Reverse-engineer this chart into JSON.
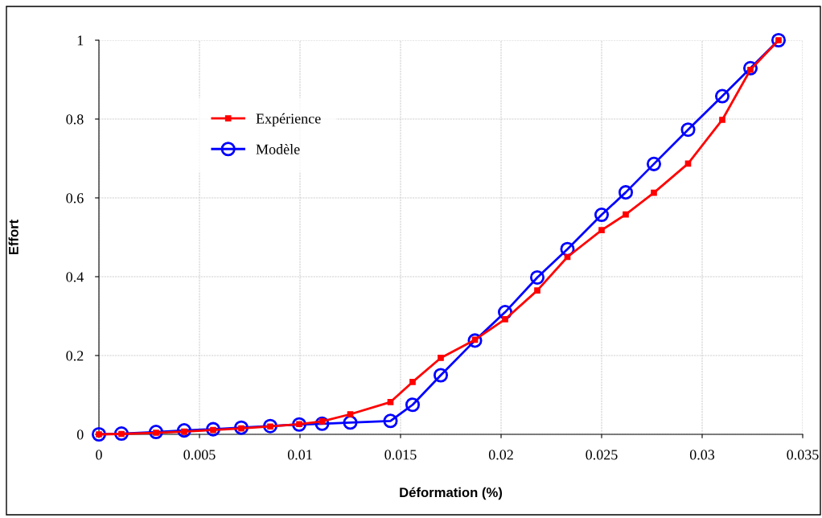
{
  "chart_data": {
    "type": "line",
    "xlabel": "Déformation (%)",
    "ylabel": "Effort",
    "x": [
      0,
      0.00112,
      0.00284,
      0.00424,
      0.00568,
      0.00708,
      0.00852,
      0.00996,
      0.0111,
      0.0125,
      0.0145,
      0.0156,
      0.017,
      0.0187,
      0.0202,
      0.0218,
      0.0233,
      0.025,
      0.0262,
      0.0276,
      0.0293,
      0.031,
      0.0324,
      0.0338
    ],
    "series": [
      {
        "name": "Expérience",
        "color": "#ff0000",
        "marker": "square",
        "values": [
          0,
          0.001,
          0.004,
          0.007,
          0.011,
          0.015,
          0.02,
          0.026,
          0.033,
          0.051,
          0.082,
          0.133,
          0.194,
          0.24,
          0.292,
          0.365,
          0.45,
          0.518,
          0.558,
          0.613,
          0.687,
          0.798,
          0.925,
          1.0
        ]
      },
      {
        "name": "Modèle",
        "color": "#0000ff",
        "marker": "circle",
        "values": [
          0,
          0.002,
          0.006,
          0.01,
          0.013,
          0.017,
          0.021,
          0.025,
          0.027,
          0.03,
          0.034,
          0.075,
          0.15,
          0.238,
          0.31,
          0.398,
          0.47,
          0.557,
          0.614,
          0.686,
          0.773,
          0.858,
          0.929,
          1.0
        ]
      }
    ],
    "xlim": [
      0,
      0.035
    ],
    "xticks": [
      0,
      0.005,
      0.01,
      0.015,
      0.02,
      0.025,
      0.03,
      0.035
    ],
    "ylim": [
      0,
      1
    ],
    "yticks": [
      0,
      0.2,
      0.4,
      0.6,
      0.8,
      1
    ],
    "grid": true,
    "legend": "top left",
    "line_style": "solid"
  }
}
